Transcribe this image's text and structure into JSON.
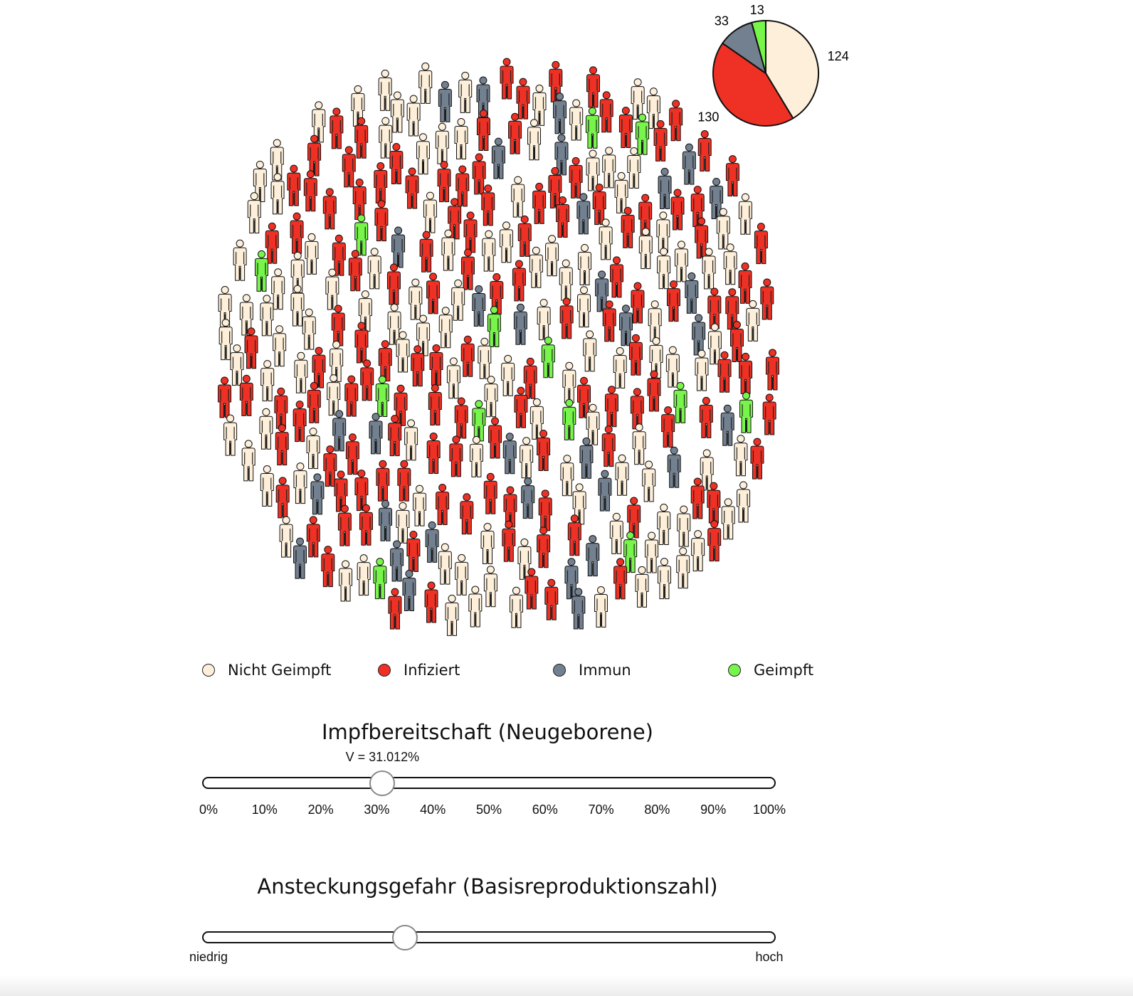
{
  "colors": {
    "nicht_geimpft": "#fdefd9",
    "infiziert": "#ee3124",
    "immun": "#728090",
    "geimpft": "#77f54a"
  },
  "chart_data": {
    "type": "pie",
    "title": "",
    "slices": [
      {
        "name": "Nicht Geimpft",
        "value": 124,
        "label": "124",
        "color": "#fdefd9"
      },
      {
        "name": "Infiziert",
        "value": 130,
        "label": "130",
        "color": "#ee3124"
      },
      {
        "name": "Immun",
        "value": 33,
        "label": "33",
        "color": "#728090"
      },
      {
        "name": "Geimpft",
        "value": 13,
        "label": "13",
        "color": "#77f54a"
      }
    ]
  },
  "legend": [
    {
      "label": "Nicht Geimpft",
      "color": "#fdefd9"
    },
    {
      "label": "Infiziert",
      "color": "#ee3124"
    },
    {
      "label": "Immun",
      "color": "#728090"
    },
    {
      "label": "Geimpft",
      "color": "#77f54a"
    }
  ],
  "slider1": {
    "title": "Impfbereitschaft (Neugeborene)",
    "value_label": "V = 31.012%",
    "value": 0.31012,
    "ticks": [
      "0%",
      "10%",
      "20%",
      "30%",
      "40%",
      "50%",
      "60%",
      "70%",
      "80%",
      "90%",
      "100%"
    ]
  },
  "slider2": {
    "title": "Ansteckungsgefahr (Basisreproduktionszahl)",
    "value": 0.35,
    "min_label": "niedrig",
    "max_label": "hoch"
  }
}
